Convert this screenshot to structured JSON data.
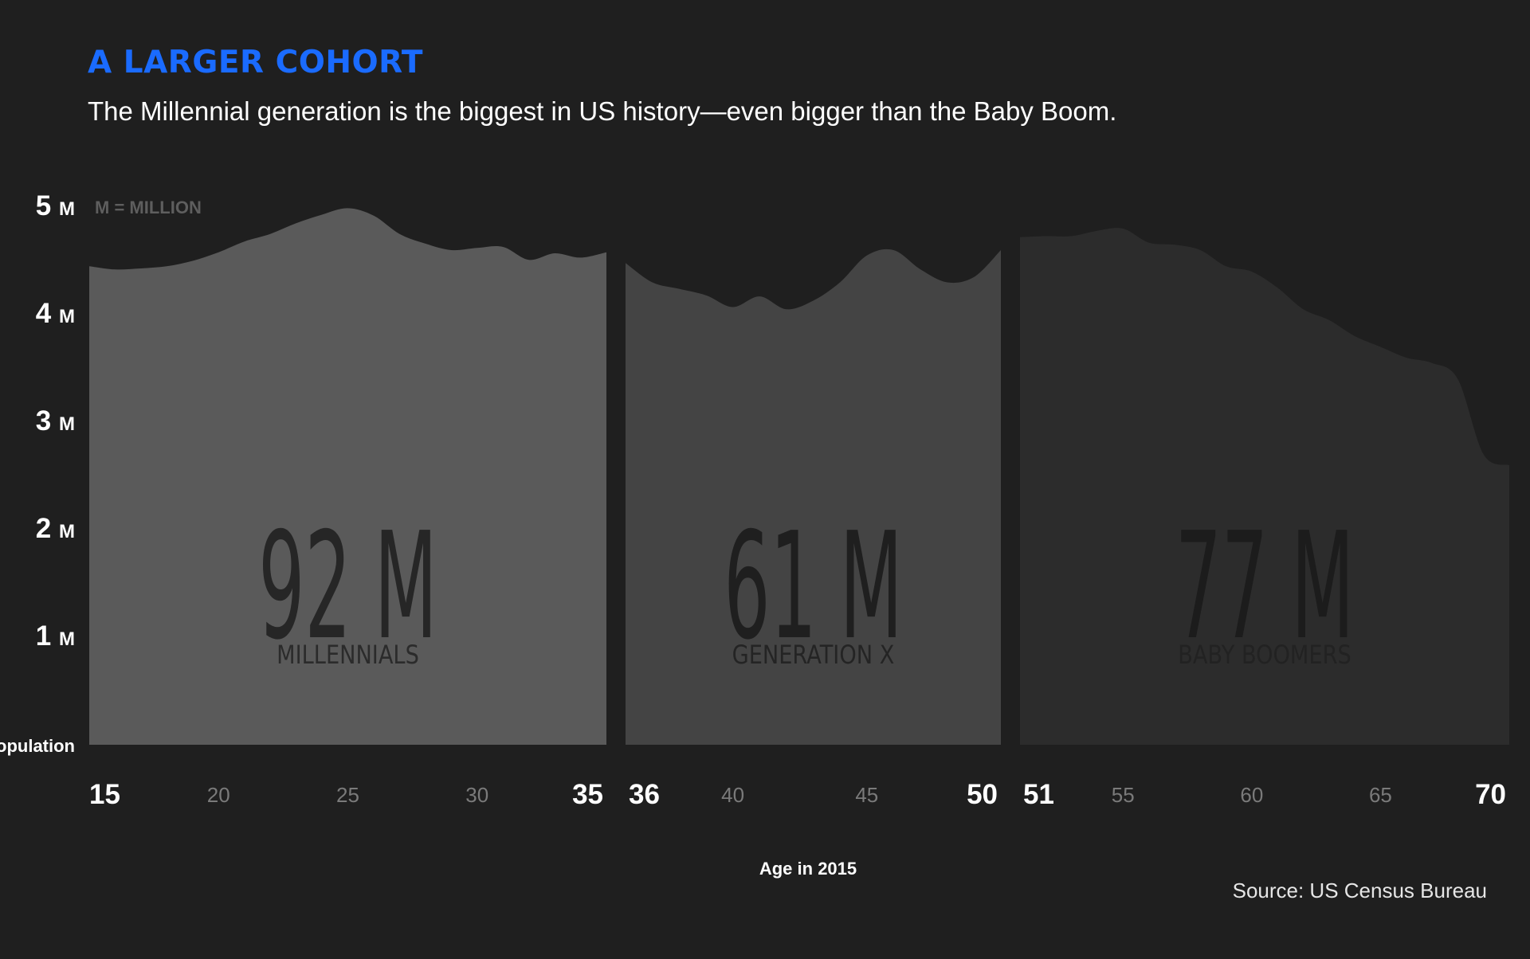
{
  "title": "A LARGER COHORT",
  "subtitle": "The Millennial generation is the biggest in US history—even bigger than the Baby Boom.",
  "source": "Source: US Census Bureau",
  "colors": {
    "background": "#1f1f1f",
    "title": "#1a6bff",
    "millennials": "#5a5a5a",
    "generation_x": "#444444",
    "baby_boomers": "#2c2c2c"
  },
  "chart_data": {
    "type": "area",
    "title": "A LARGER COHORT",
    "subtitle": "The Millennial generation is the biggest in US history—even bigger than the Baby Boom.",
    "xlabel": "Age in 2015",
    "ylabel": "Population",
    "unit_note": "M = MILLION",
    "xlim": [
      15,
      70
    ],
    "ylim": [
      0,
      5
    ],
    "y_ticks": [
      {
        "value": 1,
        "num": "1",
        "unit": "M"
      },
      {
        "value": 2,
        "num": "2",
        "unit": "M"
      },
      {
        "value": 3,
        "num": "3",
        "unit": "M"
      },
      {
        "value": 4,
        "num": "4",
        "unit": "M"
      },
      {
        "value": 5,
        "num": "5",
        "unit": "M"
      }
    ],
    "x_ticks_major": [
      15,
      35,
      36,
      50,
      51,
      70
    ],
    "x_ticks_minor": [
      20,
      25,
      30,
      40,
      45,
      55,
      60,
      65
    ],
    "grid": false,
    "series": [
      {
        "name": "MILLENNIALS",
        "total_label": "92 M",
        "ages": [
          15,
          16,
          17,
          18,
          19,
          20,
          21,
          22,
          23,
          24,
          25,
          26,
          27,
          28,
          29,
          30,
          31,
          32,
          33,
          34,
          35
        ],
        "values": [
          4.45,
          4.42,
          4.43,
          4.45,
          4.5,
          4.58,
          4.68,
          4.75,
          4.85,
          4.93,
          4.99,
          4.92,
          4.75,
          4.66,
          4.6,
          4.62,
          4.63,
          4.51,
          4.57,
          4.53,
          4.58
        ]
      },
      {
        "name": "GENERATION X",
        "total_label": "61 M",
        "ages": [
          36,
          37,
          38,
          39,
          40,
          41,
          42,
          43,
          44,
          45,
          46,
          47,
          48,
          49,
          50
        ],
        "values": [
          4.48,
          4.3,
          4.24,
          4.18,
          4.07,
          4.17,
          4.05,
          4.13,
          4.3,
          4.55,
          4.6,
          4.42,
          4.3,
          4.35,
          4.6
        ]
      },
      {
        "name": "BABY BOOMERS",
        "total_label": "77 M",
        "ages": [
          51,
          52,
          53,
          54,
          55,
          56,
          57,
          58,
          59,
          60,
          61,
          62,
          63,
          64,
          65,
          66,
          67,
          68,
          69,
          70
        ],
        "values": [
          4.72,
          4.73,
          4.73,
          4.78,
          4.8,
          4.67,
          4.65,
          4.6,
          4.45,
          4.4,
          4.25,
          4.05,
          3.95,
          3.8,
          3.7,
          3.6,
          3.55,
          3.4,
          2.7,
          2.6
        ]
      }
    ]
  }
}
